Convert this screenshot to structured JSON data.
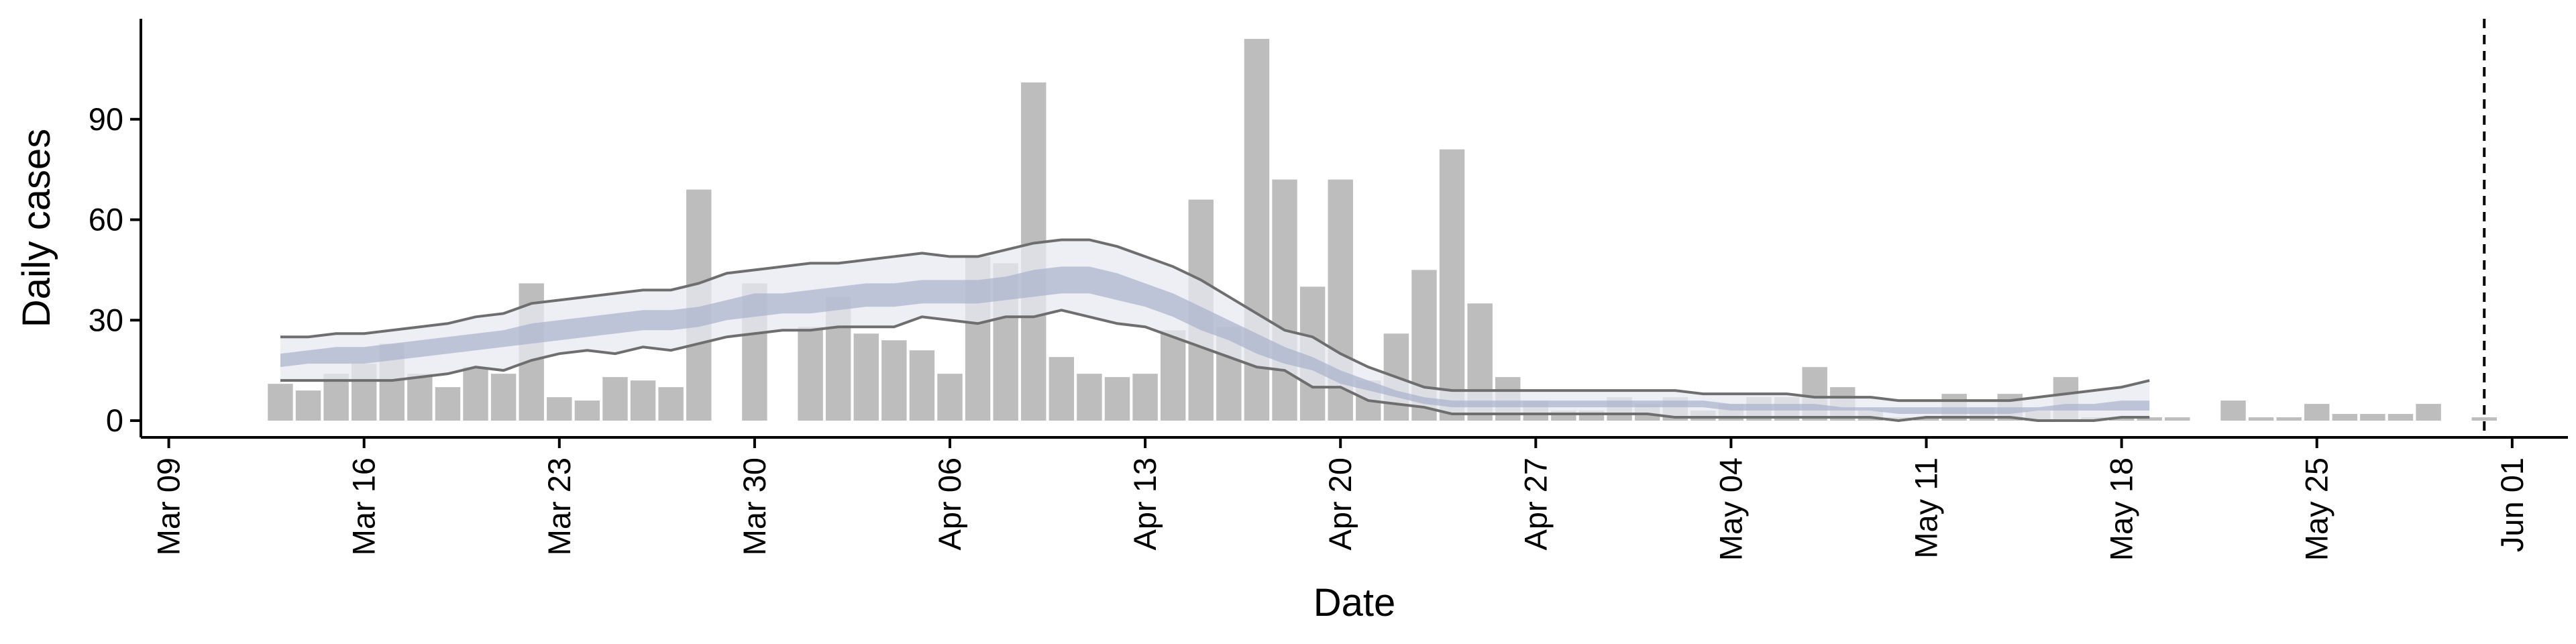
{
  "chart_data": {
    "type": "bar",
    "xlabel": "Date",
    "ylabel": "Daily cases",
    "ylim": [
      -5,
      120
    ],
    "yticks": [
      0,
      30,
      60,
      90
    ],
    "xlim": [
      "2020-03-08",
      "2020-06-03"
    ],
    "xticks": [
      {
        "date": "2020-03-09",
        "label": "Mar 09"
      },
      {
        "date": "2020-03-16",
        "label": "Mar 16"
      },
      {
        "date": "2020-03-23",
        "label": "Mar 23"
      },
      {
        "date": "2020-03-30",
        "label": "Mar 30"
      },
      {
        "date": "2020-04-06",
        "label": "Apr 06"
      },
      {
        "date": "2020-04-13",
        "label": "Apr 13"
      },
      {
        "date": "2020-04-20",
        "label": "Apr 20"
      },
      {
        "date": "2020-04-27",
        "label": "Apr 27"
      },
      {
        "date": "2020-05-04",
        "label": "May 04"
      },
      {
        "date": "2020-05-11",
        "label": "May 11"
      },
      {
        "date": "2020-05-18",
        "label": "May 18"
      },
      {
        "date": "2020-05-25",
        "label": "May 25"
      },
      {
        "date": "2020-06-01",
        "label": "Jun 01"
      }
    ],
    "grid": false,
    "legend": "none",
    "colors": {
      "bars": "#bdbdbd",
      "outer_band": "#e8e9f2",
      "inner_band": "#a8b2ca",
      "lines": "#6e6e6e",
      "axis": "#000000"
    },
    "cases": {
      "start_date": "2020-03-13",
      "values": [
        11,
        9,
        14,
        17,
        23,
        14,
        10,
        16,
        14,
        41,
        7,
        6,
        13,
        12,
        10,
        69,
        0,
        41,
        0,
        28,
        37,
        26,
        24,
        21,
        14,
        49,
        47,
        101,
        19,
        14,
        13,
        14,
        27,
        66,
        28,
        114,
        72,
        40,
        72,
        12,
        26,
        45,
        81,
        35,
        13,
        6,
        3,
        3,
        7,
        5,
        7,
        3,
        5,
        7,
        7,
        16,
        10,
        3,
        1,
        1,
        8,
        4,
        8,
        3,
        13,
        1,
        1,
        1,
        1,
        0,
        6,
        1,
        1,
        5,
        2,
        2,
        2,
        5,
        0,
        1
      ]
    },
    "estimate": {
      "start_date": "2020-03-13",
      "outer_upper": [
        25,
        25,
        26,
        26,
        27,
        28,
        29,
        31,
        32,
        35,
        36,
        37,
        38,
        39,
        39,
        41,
        44,
        45,
        46,
        47,
        47,
        48,
        49,
        50,
        49,
        49,
        51,
        53,
        54,
        54,
        52,
        49,
        46,
        42,
        37,
        32,
        27,
        25,
        20,
        16,
        13,
        10,
        9,
        9,
        9,
        9,
        9,
        9,
        9,
        9,
        9,
        8,
        8,
        8,
        8,
        7,
        7,
        7,
        6,
        6,
        6,
        6,
        6,
        7,
        8,
        9,
        10,
        12
      ],
      "inner_upper": [
        20,
        21,
        22,
        22,
        23,
        24,
        25,
        26,
        27,
        29,
        30,
        31,
        32,
        33,
        33,
        34,
        36,
        38,
        38,
        39,
        40,
        41,
        41,
        42,
        42,
        42,
        43,
        45,
        46,
        46,
        44,
        41,
        38,
        34,
        30,
        26,
        22,
        19,
        15,
        12,
        9,
        7,
        6,
        6,
        6,
        6,
        6,
        6,
        6,
        6,
        6,
        6,
        5,
        5,
        5,
        5,
        4,
        4,
        4,
        4,
        4,
        4,
        4,
        4,
        5,
        5,
        6,
        6
      ],
      "inner_lower": [
        16,
        17,
        17,
        17,
        18,
        19,
        20,
        21,
        22,
        23,
        24,
        25,
        26,
        27,
        27,
        28,
        30,
        31,
        32,
        32,
        33,
        34,
        34,
        35,
        35,
        35,
        36,
        37,
        38,
        38,
        36,
        34,
        31,
        27,
        24,
        20,
        17,
        15,
        11,
        9,
        7,
        5,
        4,
        4,
        4,
        4,
        4,
        4,
        4,
        4,
        4,
        4,
        3,
        3,
        3,
        3,
        3,
        3,
        2,
        2,
        2,
        2,
        2,
        3,
        3,
        3,
        3,
        3
      ],
      "outer_lower": [
        12,
        12,
        12,
        12,
        12,
        13,
        14,
        16,
        15,
        18,
        20,
        21,
        20,
        22,
        21,
        23,
        25,
        26,
        27,
        27,
        28,
        28,
        28,
        31,
        30,
        29,
        31,
        31,
        33,
        31,
        29,
        28,
        25,
        22,
        19,
        16,
        15,
        10,
        10,
        6,
        5,
        4,
        2,
        2,
        2,
        2,
        2,
        2,
        2,
        2,
        1,
        1,
        1,
        1,
        1,
        1,
        1,
        1,
        0,
        1,
        1,
        1,
        1,
        0,
        0,
        0,
        1,
        1
      ]
    },
    "vline": "2020-05-31"
  }
}
